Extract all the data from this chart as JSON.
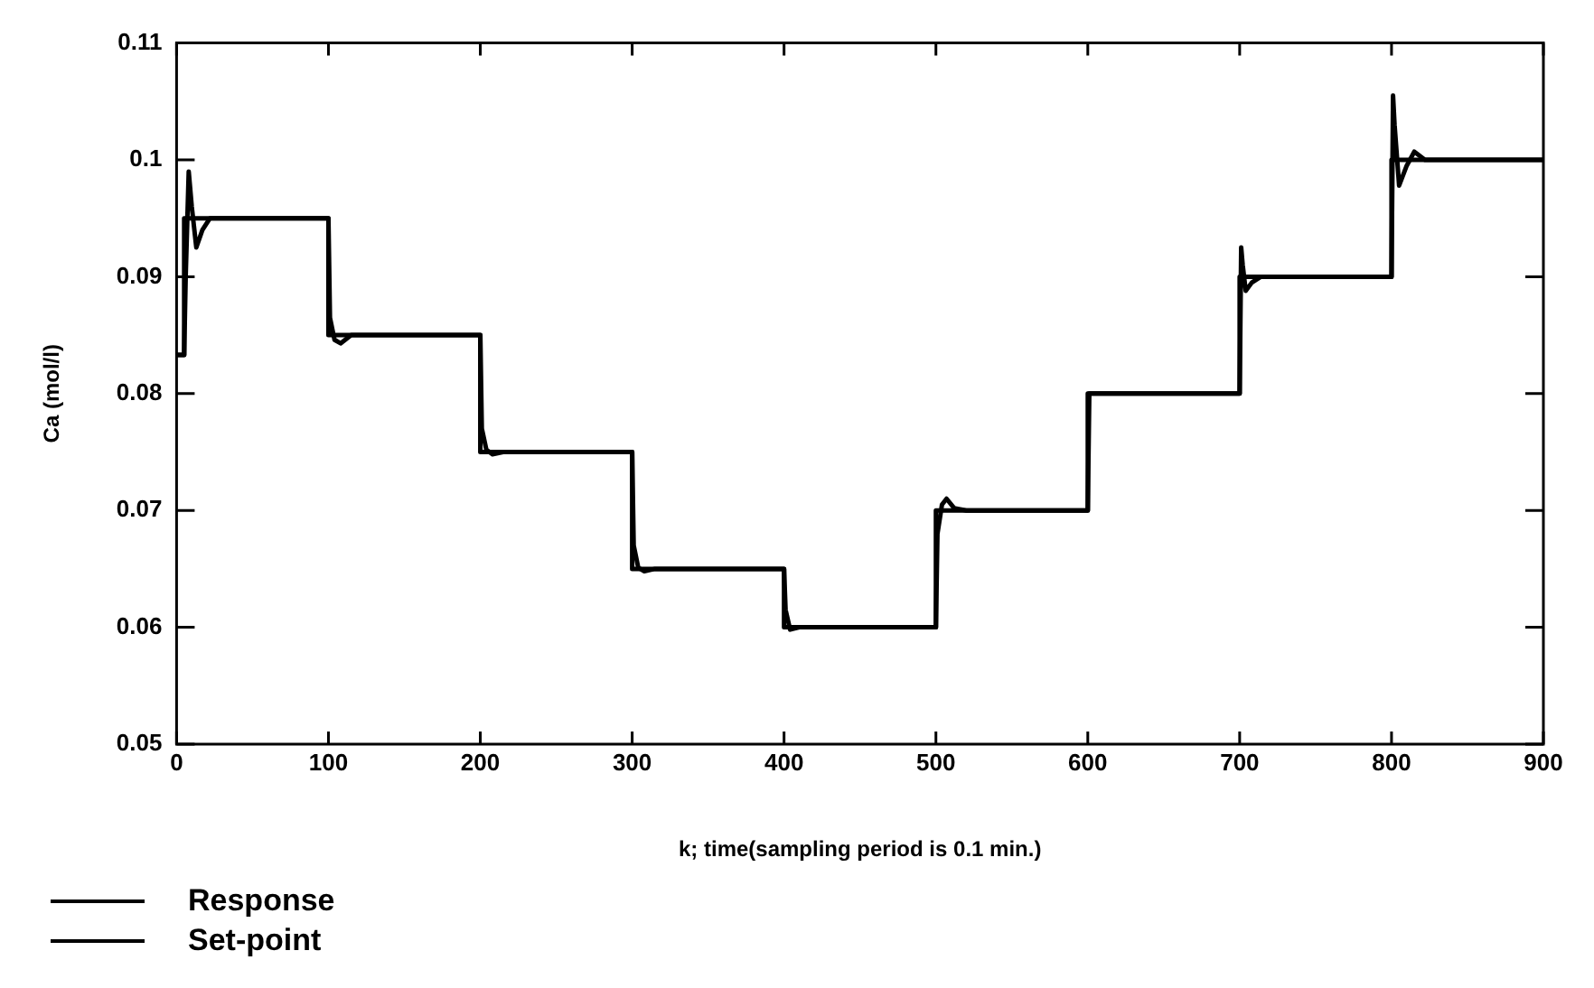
{
  "chart_data": {
    "type": "line",
    "xlabel": "k; time(sampling period is 0.1 min.)",
    "ylabel": "Ca (mol/l)",
    "xlim": [
      0,
      900
    ],
    "xticks": [
      0,
      100,
      200,
      300,
      400,
      500,
      600,
      700,
      800,
      900
    ],
    "ylim": [
      0.05,
      0.11
    ],
    "yticks": [
      0.05,
      0.06,
      0.07,
      0.08,
      0.09,
      0.1,
      0.11
    ],
    "grid": false,
    "legend": "bottom left",
    "marker": "none",
    "line_style": "solid",
    "series": [
      {
        "name": "Response",
        "type": "line",
        "color": "#000000",
        "x": [
          0,
          5,
          6,
          8,
          10,
          13,
          17,
          22,
          100,
          101,
          104,
          108,
          115,
          200,
          201,
          204,
          208,
          215,
          300,
          301,
          304,
          308,
          315,
          400,
          401,
          404,
          410,
          500,
          501,
          504,
          507,
          512,
          520,
          600,
          601,
          700,
          701,
          702,
          704,
          708,
          714,
          800,
          801,
          802,
          805,
          810,
          815,
          822,
          900
        ],
        "values": [
          0.0833,
          0.0833,
          0.09,
          0.099,
          0.096,
          0.0925,
          0.094,
          0.095,
          0.095,
          0.0865,
          0.0846,
          0.0843,
          0.085,
          0.085,
          0.077,
          0.0752,
          0.0748,
          0.075,
          0.075,
          0.067,
          0.0651,
          0.0648,
          0.065,
          0.065,
          0.0615,
          0.0598,
          0.06,
          0.06,
          0.068,
          0.0705,
          0.071,
          0.0702,
          0.07,
          0.07,
          0.08,
          0.08,
          0.0925,
          0.091,
          0.0888,
          0.0895,
          0.09,
          0.09,
          0.1055,
          0.103,
          0.0978,
          0.0995,
          0.1007,
          0.1,
          0.1
        ]
      },
      {
        "name": "Set-point",
        "type": "step",
        "color": "#000000",
        "x": [
          0,
          5,
          100,
          200,
          300,
          400,
          500,
          600,
          700,
          800,
          900
        ],
        "values": [
          0.0833,
          0.095,
          0.085,
          0.075,
          0.065,
          0.06,
          0.07,
          0.08,
          0.09,
          0.1,
          0.1
        ]
      }
    ]
  }
}
